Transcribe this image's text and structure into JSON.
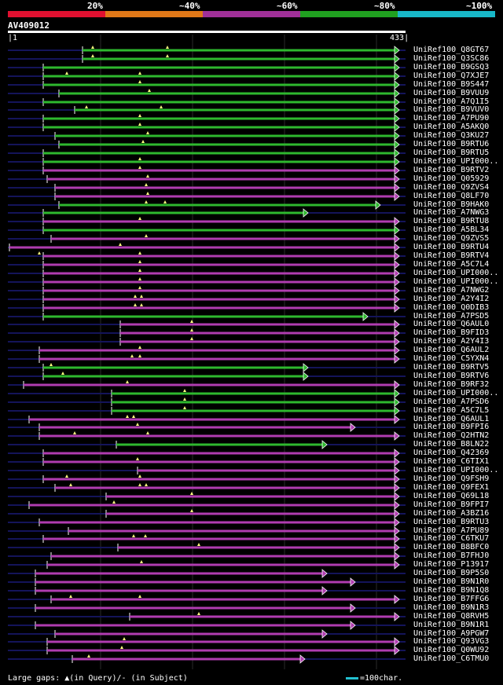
{
  "legend": {
    "colors": [
      "#e01030",
      "#e07818",
      "#a03098",
      "#20a020",
      "#18b8c8"
    ],
    "labels": [
      "20%",
      "~40%",
      "~60%",
      "~80%",
      "~100%"
    ]
  },
  "query": {
    "id": "AV409012",
    "start": "1",
    "end": "433"
  },
  "colors": {
    "green": "#2eb82e",
    "magenta": "#b03cb0",
    "navy": "#14145a",
    "grid": "#2a2a2a"
  },
  "hits": [
    {
      "name": "UniRef100_Q8GT67",
      "color": "green",
      "s": 105,
      "e": 508,
      "arrow": true,
      "marks": [
        118,
        213
      ]
    },
    {
      "name": "UniRef100_Q3SC86",
      "color": "green",
      "s": 105,
      "e": 508,
      "arrow": true,
      "marks": [
        118,
        213
      ]
    },
    {
      "name": "UniRef100_B9GSQ3",
      "color": "green",
      "s": 55,
      "e": 508,
      "arrow": true,
      "marks": []
    },
    {
      "name": "UniRef100_Q7XJE7",
      "color": "green",
      "s": 55,
      "e": 508,
      "arrow": true,
      "marks": [
        85,
        178
      ]
    },
    {
      "name": "UniRef100_B9S447",
      "color": "green",
      "s": 55,
      "e": 508,
      "arrow": true,
      "marks": [
        178
      ]
    },
    {
      "name": "UniRef100_B9VUU9",
      "color": "green",
      "s": 75,
      "e": 508,
      "arrow": true,
      "marks": [
        190
      ]
    },
    {
      "name": "UniRef100_A7Q1I5",
      "color": "green",
      "s": 55,
      "e": 508,
      "arrow": true,
      "marks": []
    },
    {
      "name": "UniRef100_B9VUV0",
      "color": "green",
      "s": 95,
      "e": 508,
      "arrow": true,
      "marks": [
        110,
        205
      ]
    },
    {
      "name": "UniRef100_A7PU90",
      "color": "green",
      "s": 55,
      "e": 508,
      "arrow": true,
      "marks": [
        178
      ]
    },
    {
      "name": "UniRef100_A5AKQ0",
      "color": "green",
      "s": 55,
      "e": 508,
      "arrow": true,
      "marks": [
        178
      ]
    },
    {
      "name": "UniRef100_Q3KU27",
      "color": "green",
      "s": 70,
      "e": 508,
      "arrow": true,
      "marks": [
        188
      ]
    },
    {
      "name": "UniRef100_B9RTU6",
      "color": "green",
      "s": 75,
      "e": 508,
      "arrow": true,
      "marks": [
        182
      ]
    },
    {
      "name": "UniRef100_B9RTU5",
      "color": "green",
      "s": 55,
      "e": 508,
      "arrow": true,
      "marks": []
    },
    {
      "name": "UniRef100_UPI000..",
      "color": "green",
      "s": 55,
      "e": 508,
      "arrow": true,
      "marks": [
        178
      ]
    },
    {
      "name": "UniRef100_B9RTV2",
      "color": "magenta",
      "s": 55,
      "e": 508,
      "arrow": true,
      "marks": [
        178
      ]
    },
    {
      "name": "UniRef100_Q05929",
      "color": "magenta",
      "s": 60,
      "e": 508,
      "arrow": true,
      "marks": [
        188
      ]
    },
    {
      "name": "UniRef100_Q9ZVS4",
      "color": "magenta",
      "s": 70,
      "e": 508,
      "arrow": true,
      "marks": [
        186
      ]
    },
    {
      "name": "UniRef100_Q8LF70",
      "color": "magenta",
      "s": 70,
      "e": 508,
      "arrow": true,
      "marks": [
        188
      ]
    },
    {
      "name": "UniRef100_B9HAK0",
      "color": "green",
      "s": 75,
      "e": 484,
      "arrow": true,
      "marks": [
        186,
        210
      ]
    },
    {
      "name": "UniRef100_A7NWG3",
      "color": "green",
      "s": 55,
      "e": 392,
      "arrow": true,
      "marks": []
    },
    {
      "name": "UniRef100_B9RTU8",
      "color": "magenta",
      "s": 55,
      "e": 508,
      "arrow": true,
      "marks": [
        178
      ]
    },
    {
      "name": "UniRef100_A5BL34",
      "color": "green",
      "s": 55,
      "e": 508,
      "arrow": true,
      "marks": []
    },
    {
      "name": "UniRef100_Q9ZVS5",
      "color": "magenta",
      "s": 65,
      "e": 508,
      "arrow": true,
      "marks": [
        186
      ]
    },
    {
      "name": "UniRef100_B9RTU4",
      "color": "magenta",
      "s": 12,
      "e": 508,
      "arrow": true,
      "marks": [
        153
      ]
    },
    {
      "name": "UniRef100_B9RTV4",
      "color": "magenta",
      "s": 55,
      "e": 508,
      "arrow": true,
      "marks": [
        50,
        178
      ]
    },
    {
      "name": "UniRef100_A5C7L4",
      "color": "magenta",
      "s": 55,
      "e": 508,
      "arrow": true,
      "marks": [
        178
      ]
    },
    {
      "name": "UniRef100_UPI000..",
      "color": "magenta",
      "s": 55,
      "e": 508,
      "arrow": true,
      "marks": [
        178
      ]
    },
    {
      "name": "UniRef100_UPI000..",
      "color": "magenta",
      "s": 55,
      "e": 508,
      "arrow": true,
      "marks": [
        178
      ]
    },
    {
      "name": "UniRef100_A7NWG2",
      "color": "magenta",
      "s": 55,
      "e": 508,
      "arrow": true,
      "marks": [
        178
      ]
    },
    {
      "name": "UniRef100_A2Y4I2",
      "color": "magenta",
      "s": 55,
      "e": 508,
      "arrow": true,
      "marks": [
        172,
        180
      ]
    },
    {
      "name": "UniRef100_Q0DIB3",
      "color": "magenta",
      "s": 55,
      "e": 508,
      "arrow": true,
      "marks": [
        172,
        180
      ]
    },
    {
      "name": "UniRef100_A7PSD5",
      "color": "green",
      "s": 55,
      "e": 468,
      "arrow": true,
      "marks": []
    },
    {
      "name": "UniRef100_Q6AUL0",
      "color": "magenta",
      "s": 153,
      "e": 508,
      "arrow": true,
      "marks": [
        244
      ]
    },
    {
      "name": "UniRef100_B9FID3",
      "color": "magenta",
      "s": 153,
      "e": 508,
      "arrow": true,
      "marks": [
        244
      ]
    },
    {
      "name": "UniRef100_A2Y4I3",
      "color": "magenta",
      "s": 153,
      "e": 508,
      "arrow": true,
      "marks": [
        244
      ]
    },
    {
      "name": "UniRef100_Q6AUL2",
      "color": "magenta",
      "s": 50,
      "e": 508,
      "arrow": true,
      "marks": [
        178
      ]
    },
    {
      "name": "UniRef100_C5YXN4",
      "color": "magenta",
      "s": 50,
      "e": 508,
      "arrow": true,
      "marks": [
        168,
        178
      ]
    },
    {
      "name": "UniRef100_B9RTV5",
      "color": "green",
      "s": 55,
      "e": 392,
      "arrow": true,
      "marks": [
        65
      ]
    },
    {
      "name": "UniRef100_B9RTV6",
      "color": "green",
      "s": 55,
      "e": 392,
      "arrow": true,
      "marks": [
        80
      ]
    },
    {
      "name": "UniRef100_B9RF32",
      "color": "magenta",
      "s": 30,
      "e": 508,
      "arrow": true,
      "marks": [
        162
      ]
    },
    {
      "name": "UniRef100_UPI000..",
      "color": "green",
      "s": 142,
      "e": 508,
      "arrow": true,
      "marks": [
        235
      ]
    },
    {
      "name": "UniRef100_A7PSD6",
      "color": "green",
      "s": 142,
      "e": 508,
      "arrow": true,
      "marks": [
        235
      ]
    },
    {
      "name": "UniRef100_A5C7L5",
      "color": "green",
      "s": 142,
      "e": 508,
      "arrow": true,
      "marks": [
        235
      ]
    },
    {
      "name": "UniRef100_Q6AUL1",
      "color": "magenta",
      "s": 37,
      "e": 508,
      "arrow": true,
      "marks": [
        162,
        170
      ]
    },
    {
      "name": "UniRef100_B9FPI6",
      "color": "magenta",
      "s": 50,
      "e": 452,
      "arrow": true,
      "marks": [
        175
      ]
    },
    {
      "name": "UniRef100_Q2HTN2",
      "color": "magenta",
      "s": 50,
      "e": 508,
      "arrow": true,
      "marks": [
        95,
        188
      ]
    },
    {
      "name": "UniRef100_B8LN22",
      "color": "green",
      "s": 148,
      "e": 416,
      "arrow": true,
      "marks": []
    },
    {
      "name": "UniRef100_Q42369",
      "color": "magenta",
      "s": 55,
      "e": 508,
      "arrow": true,
      "marks": []
    },
    {
      "name": "UniRef100_C6TIX1",
      "color": "magenta",
      "s": 55,
      "e": 508,
      "arrow": true,
      "marks": [
        175
      ]
    },
    {
      "name": "UniRef100_UPI000..",
      "color": "magenta",
      "s": 175,
      "e": 508,
      "arrow": true,
      "marks": []
    },
    {
      "name": "UniRef100_Q9FSH9",
      "color": "magenta",
      "s": 55,
      "e": 508,
      "arrow": true,
      "marks": [
        85,
        178
      ]
    },
    {
      "name": "UniRef100_Q9FEX1",
      "color": "magenta",
      "s": 70,
      "e": 508,
      "arrow": true,
      "marks": [
        90,
        178,
        186
      ]
    },
    {
      "name": "UniRef100_Q69L18",
      "color": "magenta",
      "s": 135,
      "e": 508,
      "arrow": true,
      "marks": [
        244
      ]
    },
    {
      "name": "UniRef100_B9FPI7",
      "color": "magenta",
      "s": 37,
      "e": 508,
      "arrow": true,
      "marks": [
        145
      ]
    },
    {
      "name": "UniRef100_A3BZ16",
      "color": "magenta",
      "s": 135,
      "e": 508,
      "arrow": true,
      "marks": [
        244
      ]
    },
    {
      "name": "UniRef100_B9RTU3",
      "color": "magenta",
      "s": 50,
      "e": 508,
      "arrow": true,
      "marks": []
    },
    {
      "name": "UniRef100_A7PU89",
      "color": "magenta",
      "s": 87,
      "e": 508,
      "arrow": true,
      "marks": []
    },
    {
      "name": "UniRef100_C6TKU7",
      "color": "magenta",
      "s": 55,
      "e": 508,
      "arrow": true,
      "marks": [
        170,
        185
      ]
    },
    {
      "name": "UniRef100_B8BFC0",
      "color": "magenta",
      "s": 150,
      "e": 508,
      "arrow": true,
      "marks": [
        253
      ]
    },
    {
      "name": "UniRef100_B7FHJ0",
      "color": "magenta",
      "s": 65,
      "e": 508,
      "arrow": true,
      "marks": []
    },
    {
      "name": "UniRef100_P13917",
      "color": "magenta",
      "s": 60,
      "e": 508,
      "arrow": true,
      "marks": [
        180
      ]
    },
    {
      "name": "UniRef100_B9P5S0",
      "color": "magenta",
      "s": 45,
      "e": 416,
      "arrow": true,
      "marks": []
    },
    {
      "name": "UniRef100_B9N1R0",
      "color": "magenta",
      "s": 45,
      "e": 452,
      "arrow": true,
      "marks": []
    },
    {
      "name": "UniRef100_B9N1Q8",
      "color": "magenta",
      "s": 45,
      "e": 416,
      "arrow": true,
      "marks": []
    },
    {
      "name": "UniRef100_B7FFG6",
      "color": "magenta",
      "s": 65,
      "e": 508,
      "arrow": true,
      "marks": [
        90,
        178
      ]
    },
    {
      "name": "UniRef100_B9N1R3",
      "color": "magenta",
      "s": 45,
      "e": 452,
      "arrow": true,
      "marks": []
    },
    {
      "name": "UniRef100_Q8RVH5",
      "color": "magenta",
      "s": 165,
      "e": 508,
      "arrow": true,
      "marks": [
        253
      ]
    },
    {
      "name": "UniRef100_B9N1R1",
      "color": "magenta",
      "s": 45,
      "e": 452,
      "arrow": true,
      "marks": []
    },
    {
      "name": "UniRef100_A9PGW7",
      "color": "magenta",
      "s": 70,
      "e": 416,
      "arrow": true,
      "marks": []
    },
    {
      "name": "UniRef100_Q93VG3",
      "color": "magenta",
      "s": 60,
      "e": 508,
      "arrow": true,
      "marks": [
        158
      ]
    },
    {
      "name": "UniRef100_Q0WU92",
      "color": "magenta",
      "s": 60,
      "e": 508,
      "arrow": true,
      "marks": [
        155
      ]
    },
    {
      "name": "UniRef100_C6TMU0",
      "color": "magenta",
      "s": 92,
      "e": 388,
      "arrow": true,
      "marks": [
        113
      ]
    }
  ],
  "footer": {
    "text": "Large gaps: ▲(in Query)/- (in Subject)",
    "scale": "=100char."
  }
}
